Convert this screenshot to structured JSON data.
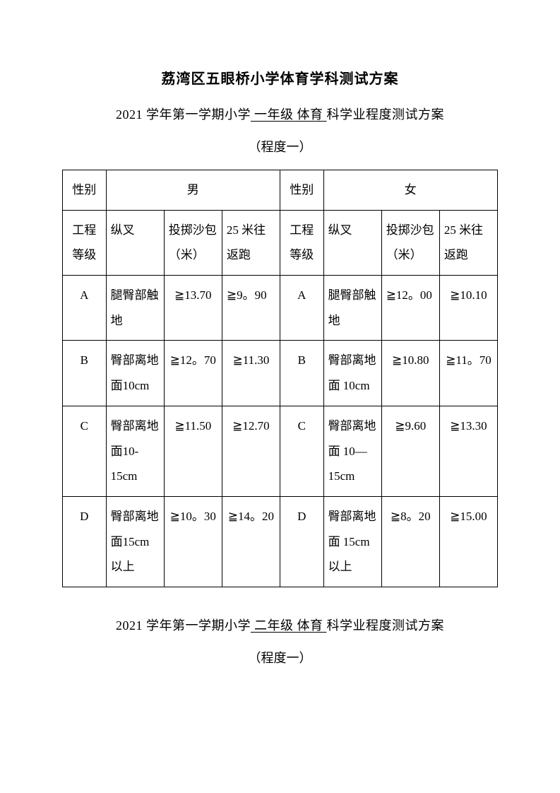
{
  "main_title": "荔湾区五眼桥小学体育学科测试方案",
  "subtitle1_pre": "2021 学年第一学期小学",
  "subtitle1_grade": " 一年级 ",
  "subtitle1_subject": " 体育 ",
  "subtitle1_post": " 科学业程度测试方案",
  "level1": "（程度一）",
  "table": {
    "header_row": {
      "gender_label_m": "性别",
      "male": "男",
      "gender_label_f": "性别",
      "female": "女"
    },
    "row2": {
      "col0": "工程等级",
      "col1": "纵叉",
      "col2": "投掷沙包（米）",
      "col3": "25 米往返跑",
      "col4": "工程等级",
      "col5": "纵叉",
      "col6": "投掷沙包（米）",
      "col7": "25 米往返跑"
    },
    "rows": [
      {
        "grade_m": "A",
        "split_m": "腿臀部触地",
        "throw_m": "≧13.70",
        "run_m": "≧9。90",
        "grade_f": "A",
        "split_f": "腿臀部触地",
        "throw_f": "≧12。00",
        "run_f": "≧10.10"
      },
      {
        "grade_m": "B",
        "split_m": "臀部离地面10cm",
        "throw_m": "≧12。70",
        "run_m": "≧11.30",
        "grade_f": "B",
        "split_f": "臀部离地面 10cm",
        "throw_f": "≧10.80",
        "run_f": "≧11。70"
      },
      {
        "grade_m": "C",
        "split_m": "臀部离地面10-15cm",
        "throw_m": "≧11.50",
        "run_m": "≧12.70",
        "grade_f": "C",
        "split_f": "臀部离地面 10—15cm",
        "throw_f": "≧9.60",
        "run_f": "≧13.30"
      },
      {
        "grade_m": "D",
        "split_m": "臀部离地面15cm 以上",
        "throw_m": "≧10。30",
        "run_m": "≧14。20",
        "grade_f": "D",
        "split_f": "臀部离地面 15cm 以上",
        "throw_f": "≧8。20",
        "run_f": "≧15.00"
      }
    ]
  },
  "subtitle2_pre": "2021 学年第一学期小学",
  "subtitle2_grade": " 二年级 ",
  "subtitle2_subject": " 体育 ",
  "subtitle2_post": " 科学业程度测试方案",
  "level2": "（程度一）"
}
